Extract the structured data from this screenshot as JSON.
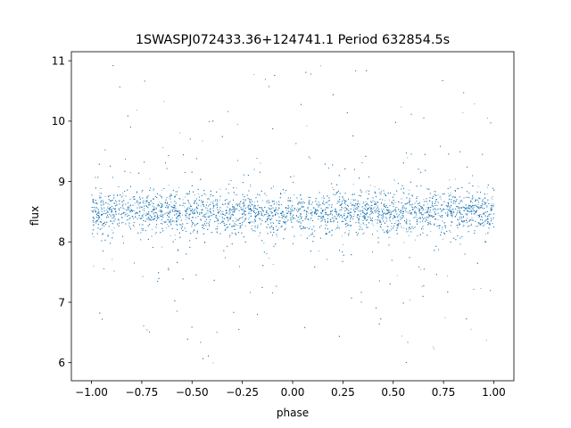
{
  "chart_data": {
    "type": "scatter",
    "title": "1SWASPJ072433.36+124741.1 Period 632854.5s",
    "xlabel": "phase",
    "ylabel": "flux",
    "xlim": [
      -1.1,
      1.1
    ],
    "ylim": [
      5.7,
      11.15
    ],
    "xticks": [
      -1.0,
      -0.75,
      -0.5,
      -0.25,
      0.0,
      0.25,
      0.5,
      0.75,
      1.0
    ],
    "xtick_labels": [
      "−1.00",
      "−0.75",
      "−0.50",
      "−0.25",
      "0.00",
      "0.25",
      "0.50",
      "0.75",
      "1.00"
    ],
    "yticks": [
      6,
      7,
      8,
      9,
      10,
      11
    ],
    "ytick_labels": [
      "6",
      "7",
      "8",
      "9",
      "10",
      "11"
    ],
    "grid": false,
    "marker_color": "#1f77b4",
    "phase_range": [
      -1.0,
      1.0
    ],
    "flux_baseline": 8.5,
    "series": [
      {
        "name": "",
        "x": [
          -0.98,
          -0.95,
          -0.91,
          -0.88,
          -0.84,
          -0.8,
          -0.76,
          -0.72,
          -0.69,
          -0.65,
          -0.61,
          -0.57,
          -0.53,
          -0.49,
          -0.45,
          -0.41,
          -0.37,
          -0.33,
          -0.29,
          -0.25,
          -0.21,
          -0.17,
          -0.13,
          -0.09,
          -0.05,
          -0.01,
          0.03,
          0.07,
          0.11,
          0.15,
          0.19,
          0.23,
          0.27,
          0.31,
          0.35,
          0.39,
          0.43,
          0.47,
          0.51,
          0.55,
          0.59,
          0.63,
          0.67,
          0.71,
          0.75,
          0.79,
          0.83,
          0.87,
          0.91,
          0.95,
          0.99
        ],
        "y": [
          8.5,
          8.45,
          8.55,
          8.5,
          8.48,
          8.52,
          8.5,
          8.46,
          8.54,
          8.5,
          8.49,
          8.51,
          8.5,
          8.47,
          8.53,
          8.5,
          8.48,
          8.52,
          8.5,
          8.46,
          8.54,
          8.5,
          8.49,
          8.51,
          8.5,
          8.47,
          8.53,
          8.5,
          8.48,
          8.52,
          8.5,
          8.46,
          8.54,
          8.5,
          8.49,
          8.51,
          8.5,
          8.47,
          8.53,
          8.5,
          8.48,
          8.52,
          8.5,
          8.46,
          8.54,
          8.5,
          8.49,
          8.51,
          8.5,
          8.47,
          8.53
        ]
      }
    ]
  }
}
